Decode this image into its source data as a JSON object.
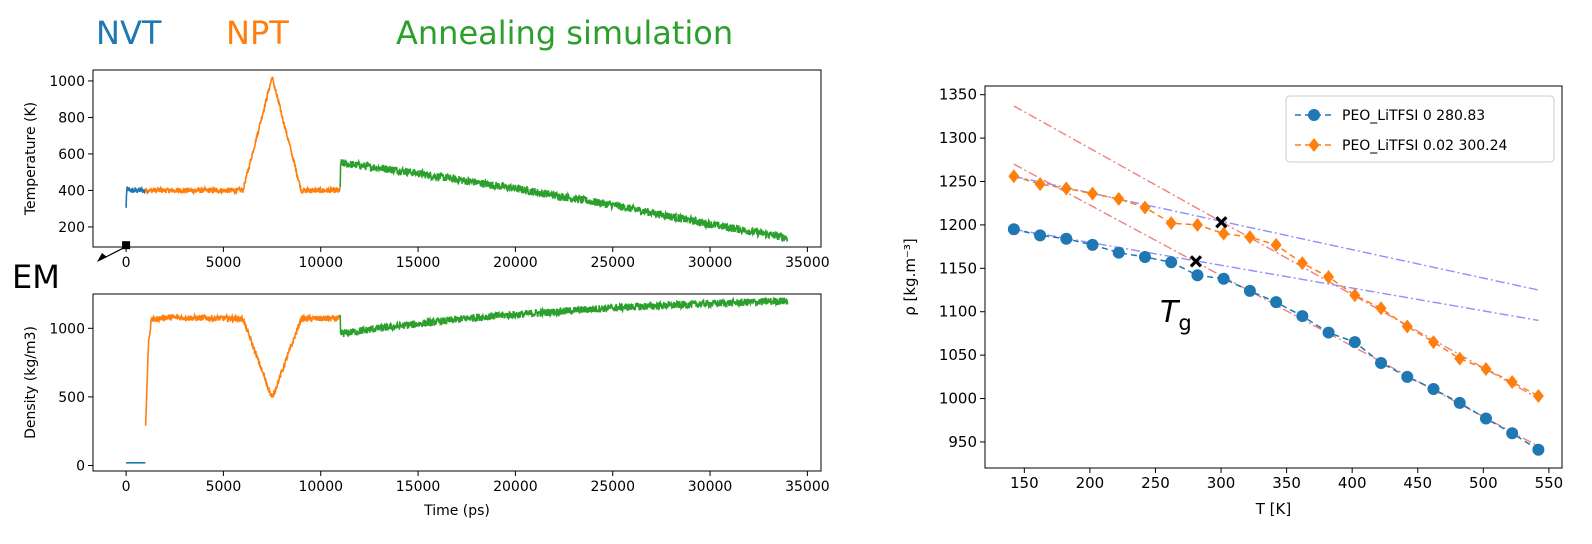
{
  "colors": {
    "nvt": "#1f77b4",
    "npt": "#ff7f0e",
    "anneal": "#2ca02c",
    "fit_red": "#f08080",
    "fit_blue": "#8f8fff"
  },
  "annotations": {
    "nvt": "NVT",
    "npt": "NPT",
    "annealing": "Annealing simulation",
    "em": "EM",
    "tg_main": "T",
    "tg_sub": "g"
  },
  "chart_data": [
    {
      "type": "line",
      "ylabel": "Temperature (K)",
      "xlabel": "",
      "xlim": [
        -1700,
        35700
      ],
      "ylim": [
        90,
        1060
      ],
      "xticks": [
        0,
        5000,
        10000,
        15000,
        20000,
        25000,
        30000,
        35000
      ],
      "yticks": [
        200,
        400,
        600,
        800,
        1000
      ],
      "series": [
        {
          "stage": "NVT",
          "color": "#1f77b4",
          "noise": 15,
          "x": [
            0,
            20,
            60,
            200,
            1000
          ],
          "y": [
            300,
            380,
            410,
            400,
            400
          ]
        },
        {
          "stage": "NPT",
          "color": "#ff7f0e",
          "noise": 15,
          "x": [
            1000,
            6000,
            7500,
            9000,
            11000
          ],
          "y": [
            400,
            400,
            1020,
            400,
            400
          ]
        },
        {
          "stage": "Annealing",
          "color": "#2ca02c",
          "noise": 22,
          "x": [
            11000,
            11010,
            14000,
            20000,
            25000,
            30000,
            34000
          ],
          "y": [
            410,
            550,
            510,
            410,
            320,
            215,
            140
          ]
        }
      ],
      "markers": [
        {
          "label": "EM",
          "x": 0,
          "y": 100
        }
      ]
    },
    {
      "type": "line",
      "ylabel": "Density (kg/m3)",
      "xlabel": "Time (ps)",
      "xlim": [
        -1700,
        35700
      ],
      "ylim": [
        -40,
        1250
      ],
      "xticks": [
        0,
        5000,
        10000,
        15000,
        20000,
        25000,
        30000,
        35000
      ],
      "yticks": [
        0,
        500,
        1000
      ],
      "series": [
        {
          "stage": "NVT",
          "color": "#1f77b4",
          "noise": 0,
          "x": [
            0,
            1000
          ],
          "y": [
            20,
            20
          ]
        },
        {
          "stage": "NPT",
          "color": "#ff7f0e",
          "noise": 22,
          "x": [
            1000,
            1150,
            1300,
            2000,
            6000,
            7500,
            9000,
            11000
          ],
          "y": [
            280,
            900,
            1060,
            1080,
            1070,
            490,
            1070,
            1070
          ]
        },
        {
          "stage": "Annealing",
          "color": "#2ca02c",
          "noise": 28,
          "x": [
            11000,
            11010,
            13000,
            18000,
            25000,
            30000,
            34000
          ],
          "y": [
            1070,
            960,
            1000,
            1080,
            1150,
            1180,
            1200
          ]
        }
      ]
    },
    {
      "type": "line",
      "ylabel": "ρ [kg.m⁻³]",
      "xlabel": "T [K]",
      "xlim": [
        120,
        560
      ],
      "ylim": [
        920,
        1360
      ],
      "xticks": [
        150,
        200,
        250,
        300,
        350,
        400,
        450,
        500,
        550
      ],
      "yticks": [
        950,
        1000,
        1050,
        1100,
        1150,
        1200,
        1250,
        1300,
        1350
      ],
      "legend_position": "top-right",
      "series": [
        {
          "name": "PEO_LiTFSI 0 280.83",
          "color": "#1f77b4",
          "marker": "circle",
          "x": [
            142,
            162,
            182,
            202,
            222,
            242,
            262,
            282,
            302,
            322,
            342,
            362,
            382,
            402,
            422,
            442,
            462,
            482,
            502,
            522,
            542
          ],
          "y": [
            1195,
            1188,
            1184,
            1177,
            1168,
            1163,
            1157,
            1142,
            1138,
            1124,
            1111,
            1095,
            1076,
            1065,
            1041,
            1025,
            1011,
            995,
            977,
            960,
            941
          ]
        },
        {
          "name": "PEO_LiTFSI 0.02 300.24",
          "color": "#ff7f0e",
          "marker": "diamond",
          "x": [
            142,
            162,
            182,
            202,
            222,
            242,
            262,
            282,
            302,
            322,
            342,
            362,
            382,
            402,
            422,
            442,
            462,
            482,
            502,
            522,
            542
          ],
          "y": [
            1256,
            1247,
            1242,
            1236,
            1230,
            1220,
            1202,
            1200,
            1190,
            1186,
            1177,
            1156,
            1140,
            1119,
            1104,
            1083,
            1065,
            1046,
            1034,
            1019,
            1003
          ]
        }
      ],
      "fit_lines": [
        {
          "color": "#f08080",
          "x": [
            142,
            542
          ],
          "y": [
            1270,
            945
          ]
        },
        {
          "color": "#f08080",
          "x": [
            142,
            542
          ],
          "y": [
            1337,
            1000
          ]
        },
        {
          "color": "#8f8fff",
          "x": [
            142,
            542
          ],
          "y": [
            1195,
            1090
          ]
        },
        {
          "color": "#8f8fff",
          "x": [
            142,
            542
          ],
          "y": [
            1256,
            1125
          ]
        }
      ],
      "tg_points": [
        {
          "x": 280.83,
          "y": 1158
        },
        {
          "x": 300.24,
          "y": 1203
        }
      ]
    }
  ]
}
